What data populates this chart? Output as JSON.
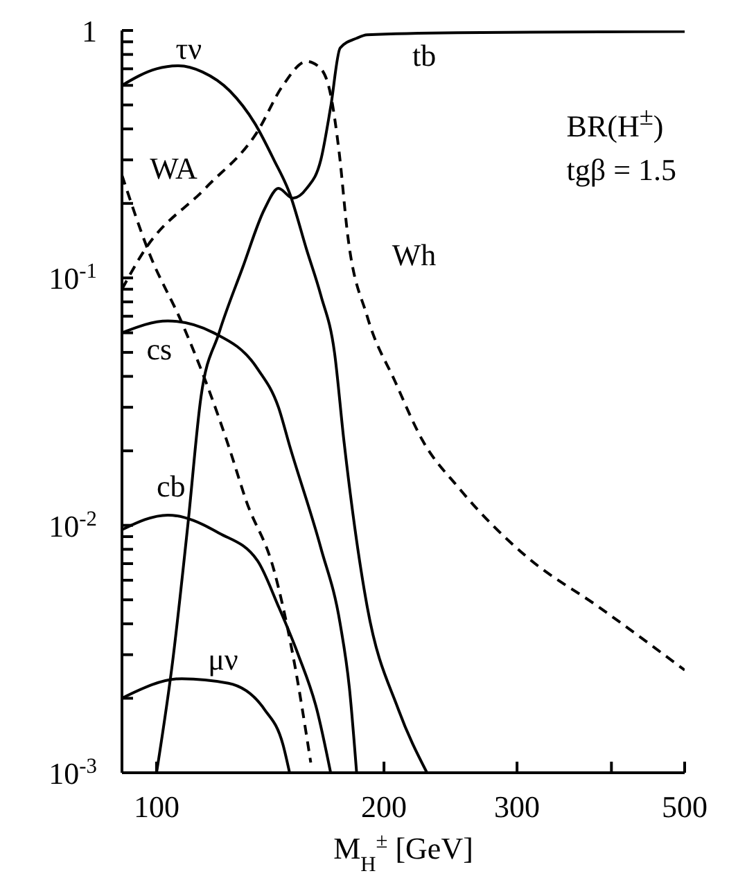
{
  "chart_data": {
    "type": "line",
    "xlabel": "M$_{H}$$^{±}$ [GeV]",
    "log": "xy",
    "grid": false,
    "legend": false,
    "marker": "none",
    "xlim": [
      90,
      500
    ],
    "xticks": [
      100,
      200,
      300,
      {
        "value": 400,
        "label": null
      },
      500
    ],
    "ylim": [
      0.001,
      1
    ],
    "yticks": [
      {
        "value": 0.001,
        "label": "10$^{-3}$"
      },
      {
        "value": 0.002,
        "label": null
      },
      {
        "value": 0.003,
        "label": null
      },
      {
        "value": 0.004,
        "label": null
      },
      {
        "value": 0.005,
        "label": null
      },
      {
        "value": 0.006,
        "label": null
      },
      {
        "value": 0.007,
        "label": null
      },
      {
        "value": 0.008,
        "label": null
      },
      {
        "value": 0.009,
        "label": null
      },
      {
        "value": 0.01,
        "label": "10$^{-2}$"
      },
      {
        "value": 0.02,
        "label": null
      },
      {
        "value": 0.03,
        "label": null
      },
      {
        "value": 0.04,
        "label": null
      },
      {
        "value": 0.05,
        "label": null
      },
      {
        "value": 0.06,
        "label": null
      },
      {
        "value": 0.07,
        "label": null
      },
      {
        "value": 0.08,
        "label": null
      },
      {
        "value": 0.09,
        "label": null
      },
      {
        "value": 0.1,
        "label": "10$^{-1}$"
      },
      {
        "value": 0.2,
        "label": null
      },
      {
        "value": 0.3,
        "label": null
      },
      {
        "value": 0.4,
        "label": null
      },
      {
        "value": 0.5,
        "label": null
      },
      {
        "value": 0.6,
        "label": null
      },
      {
        "value": 0.7,
        "label": null
      },
      {
        "value": 0.8,
        "label": null
      },
      {
        "value": 0.9,
        "label": null
      },
      1
    ],
    "series": [
      {
        "name": "τν",
        "color": "#000000",
        "line_style": "solid",
        "x": [
          90,
          100,
          107,
          115,
          125,
          135,
          143,
          150,
          158,
          165,
          172,
          177,
          190,
          209,
          228
        ],
        "values": [
          0.6,
          0.7,
          0.72,
          0.68,
          0.57,
          0.42,
          0.3,
          0.22,
          0.13,
          0.085,
          0.05,
          0.022,
          0.0047,
          0.0018,
          0.001
        ]
      },
      {
        "name": "cs",
        "color": "#000000",
        "line_style": "solid",
        "x": [
          90,
          103.5,
          119,
          136,
          145,
          150,
          165,
          175,
          180,
          184
        ],
        "values": [
          0.06,
          0.067,
          0.06,
          0.043,
          0.03,
          0.021,
          0.0081,
          0.004,
          0.0022,
          0.001
        ]
      },
      {
        "name": "cb",
        "color": "#000000",
        "line_style": "solid",
        "x": [
          90,
          103.5,
          121,
          136,
          145,
          154,
          163,
          170
        ],
        "values": [
          0.0096,
          0.011,
          0.0093,
          0.0072,
          0.0047,
          0.003,
          0.0018,
          0.001
        ]
      },
      {
        "name": "μν",
        "color": "#000000",
        "line_style": "solid",
        "x": [
          90,
          108,
          124.5,
          139,
          147,
          150
        ],
        "values": [
          0.002,
          0.0024,
          0.0023,
          0.0018,
          0.0013,
          0.001
        ]
      },
      {
        "name": "tb",
        "color": "#000000",
        "line_style": "solid",
        "x": [
          100,
          105,
          110,
          114.5,
          121,
          130,
          139,
          145,
          151.5,
          158,
          165,
          170,
          175,
          184,
          190,
          250,
          500
        ],
        "values": [
          0.001,
          0.0028,
          0.01,
          0.033,
          0.06,
          0.11,
          0.19,
          0.23,
          0.21,
          0.23,
          0.3,
          0.49,
          0.85,
          0.93,
          0.96,
          0.98,
          0.99
        ]
      },
      {
        "name": "Wh",
        "color": "#000000",
        "line_style": "dashed",
        "x": [
          90,
          96.5,
          116,
          136,
          147,
          158,
          165,
          170,
          174.5,
          179,
          190,
          207,
          225,
          251,
          310,
          384,
          500
        ],
        "values": [
          0.09,
          0.13,
          0.23,
          0.39,
          0.6,
          0.75,
          0.7,
          0.55,
          0.32,
          0.15,
          0.07,
          0.038,
          0.022,
          0.0142,
          0.0074,
          0.0047,
          0.0026
        ]
      },
      {
        "name": "WA",
        "color": "#000000",
        "line_style": "dashed",
        "x": [
          90,
          98,
          108,
          117,
          124.5,
          131.5,
          143,
          151.5,
          160
        ],
        "values": [
          0.26,
          0.124,
          0.066,
          0.036,
          0.021,
          0.0125,
          0.0066,
          0.003,
          0.0011
        ]
      }
    ],
    "annotations": [
      "BR(H$^{±}$)",
      "tgβ = 1.5"
    ]
  }
}
